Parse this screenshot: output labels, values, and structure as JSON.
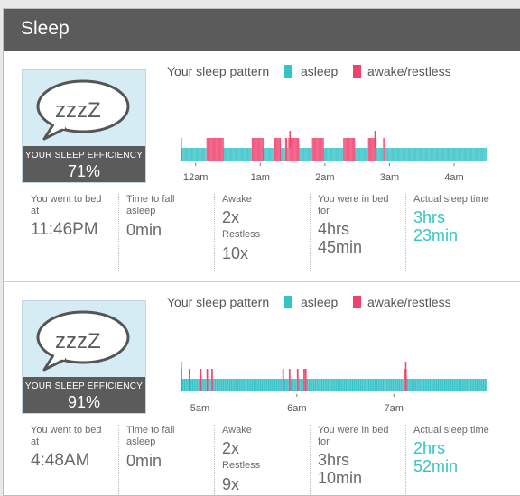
{
  "header": {
    "title": "Sleep"
  },
  "colors": {
    "asleep": "#36c3c8",
    "awake": "#f0426e",
    "header_bg": "#5b5b5b",
    "badge_bg": "#d5ecf5"
  },
  "badge_image": {
    "text": "zzzZ",
    "icon": "speech-bubble-icon"
  },
  "sessions": [
    {
      "pattern_title": "Your sleep pattern",
      "legend": [
        "asleep",
        "awake/restless"
      ],
      "efficiency_label": "YOUR SLEEP EFFICIENCY",
      "efficiency_value": "71%",
      "stats": {
        "bed_label": "You went to bed at",
        "bed_value": "11:46PM",
        "fall_label": "Time to fall asleep",
        "fall_value": "0min",
        "awake_label": "Awake",
        "awake_value": "2x",
        "restless_label": "Restless",
        "restless_value": "10x",
        "inbed_label": "You were in bed for",
        "inbed_value_1": "4hrs",
        "inbed_value_2": "45min",
        "actual_label": "Actual sleep time",
        "actual_value_1": "3hrs",
        "actual_value_2": "23min"
      },
      "chart_data": {
        "type": "bar",
        "x_ticks": [
          "12am",
          "1am",
          "2am",
          "3am",
          "4am"
        ],
        "tick_minutes": [
          14,
          74,
          134,
          194,
          254
        ],
        "span_minutes": 285,
        "awake_intervals_minutes": [
          [
            0,
            1
          ],
          [
            24,
            40
          ],
          [
            66,
            77
          ],
          [
            87,
            93
          ],
          [
            97,
            99
          ],
          [
            100,
            110
          ],
          [
            122,
            133
          ],
          [
            151,
            162
          ],
          [
            174,
            182
          ],
          [
            188,
            190
          ]
        ],
        "spike_minutes": [
          101,
          180
        ]
      }
    },
    {
      "pattern_title": "Your sleep pattern",
      "legend": [
        "asleep",
        "awake/restless"
      ],
      "efficiency_label": "YOUR SLEEP EFFICIENCY",
      "efficiency_value": "91%",
      "stats": {
        "bed_label": "You went to bed at",
        "bed_value": "4:48AM",
        "fall_label": "Time to fall asleep",
        "fall_value": "0min",
        "awake_label": "Awake",
        "awake_value": "2x",
        "restless_label": "Restless",
        "restless_value": "9x",
        "inbed_label": "You were in bed for",
        "inbed_value_1": "3hrs",
        "inbed_value_2": "10min",
        "actual_label": "Actual sleep time",
        "actual_value_1": "2hrs",
        "actual_value_2": "52min"
      },
      "chart_data": {
        "type": "bar",
        "x_ticks": [
          "5am",
          "6am",
          "7am"
        ],
        "tick_minutes": [
          12,
          72,
          132
        ],
        "span_minutes": 190,
        "awake_intervals_minutes": [
          [
            0,
            1
          ],
          [
            5,
            6
          ],
          [
            12,
            13
          ],
          [
            16,
            17
          ],
          [
            19,
            20
          ],
          [
            63,
            64
          ],
          [
            67,
            68
          ],
          [
            72,
            73
          ],
          [
            76,
            78
          ],
          [
            138,
            140
          ]
        ],
        "spike_minutes": [
          0,
          139
        ]
      }
    }
  ]
}
